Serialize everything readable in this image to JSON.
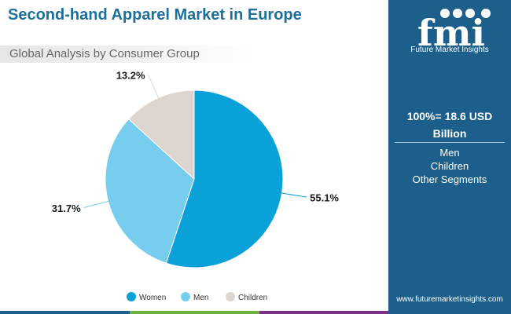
{
  "header": {
    "title": "Second-hand Apparel Market in Europe",
    "subtitle": "Global Analysis by Consumer Group"
  },
  "chart_data": {
    "type": "pie",
    "title": "Second-hand Apparel Market in Europe",
    "subtitle": "Global Analysis by Consumer Group",
    "categories": [
      "Women",
      "Men",
      "Children"
    ],
    "values": [
      55.1,
      31.7,
      13.2
    ],
    "labels": [
      "55.1%",
      "31.7%",
      "13.2%"
    ],
    "colors": [
      "#0aa0d8",
      "#76cdee",
      "#ddd5cf"
    ],
    "legend_position": "bottom"
  },
  "side_panel": {
    "logo_text": "fmi",
    "brand": "Future Market Insights",
    "total_line1": "100%= 18.6 USD",
    "total_line2": "Billion",
    "segments": [
      "Men",
      "Children",
      "Other Segments"
    ],
    "url": "www.futuremarketinsights.com"
  },
  "colors": {
    "title": "#1b6f98",
    "panel_bg": "#1b5f8a",
    "stripe": [
      "#1b5f8a",
      "#6cb33e",
      "#7b2f86"
    ]
  }
}
